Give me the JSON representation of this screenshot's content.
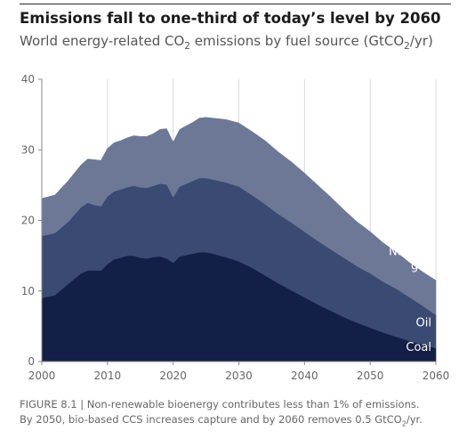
{
  "header": {
    "title": "Emissions fall to one-third of today’s level by 2060",
    "subtitle_parts": [
      "World energy-related CO",
      "2",
      " emissions by fuel source (GtCO",
      "2",
      "/yr)"
    ]
  },
  "caption": {
    "line1": "FIGURE 8.1 | Non-renewable bioenergy contributes less than 1% of emissions.",
    "line2_parts": [
      "By 2050, bio-based CCS increases capture and by 2060 removes 0.5 GtCO",
      "2",
      "/yr."
    ]
  },
  "colors": {
    "coal": "#141f47",
    "oil": "#3a4a72",
    "gas": "#6c7896",
    "grid": "#d9d9d9",
    "axis": "#888888"
  },
  "chart_data": {
    "type": "area",
    "stacked": true,
    "title": "Emissions fall to one-third of today’s level by 2060",
    "ylabel": "GtCO2/yr",
    "xlim": [
      2000,
      2060
    ],
    "ylim": [
      0,
      40
    ],
    "x_ticks": [
      2000,
      2010,
      2020,
      2030,
      2040,
      2050,
      2060
    ],
    "y_ticks": [
      0,
      10,
      20,
      30,
      40
    ],
    "grid": "vertical",
    "x": [
      2000,
      2002,
      2004,
      2006,
      2007,
      2008,
      2009,
      2010,
      2011,
      2012,
      2013,
      2014,
      2015,
      2016,
      2017,
      2018,
      2019,
      2020,
      2021,
      2022,
      2023,
      2024,
      2025,
      2026,
      2028,
      2030,
      2032,
      2034,
      2036,
      2038,
      2040,
      2042,
      2044,
      2046,
      2048,
      2050,
      2052,
      2054,
      2056,
      2058,
      2060
    ],
    "series": [
      {
        "name": "Coal",
        "values": [
          9.0,
          9.4,
          11.0,
          12.5,
          12.9,
          12.9,
          12.9,
          13.8,
          14.5,
          14.7,
          15.0,
          15.0,
          14.7,
          14.6,
          14.8,
          14.9,
          14.6,
          14.0,
          14.9,
          15.1,
          15.3,
          15.5,
          15.5,
          15.3,
          14.8,
          14.2,
          13.3,
          12.2,
          11.1,
          10.1,
          9.1,
          8.1,
          7.2,
          6.3,
          5.5,
          4.8,
          4.1,
          3.5,
          2.9,
          2.4,
          1.9
        ]
      },
      {
        "name": "Oil",
        "values": [
          8.8,
          8.8,
          8.8,
          9.4,
          9.6,
          9.3,
          9.1,
          9.6,
          9.6,
          9.7,
          9.7,
          9.9,
          10.0,
          10.0,
          10.1,
          10.3,
          10.5,
          9.3,
          9.9,
          10.1,
          10.3,
          10.5,
          10.5,
          10.5,
          10.6,
          10.6,
          10.3,
          10.1,
          9.8,
          9.6,
          9.3,
          9.0,
          8.7,
          8.4,
          8.0,
          7.7,
          7.2,
          6.8,
          6.2,
          5.5,
          4.7
        ]
      },
      {
        "name": "Natural gas",
        "values": [
          5.3,
          5.4,
          5.8,
          6.0,
          6.2,
          6.4,
          6.5,
          6.8,
          6.9,
          6.9,
          7.0,
          7.1,
          7.2,
          7.3,
          7.4,
          7.7,
          7.9,
          7.8,
          8.1,
          8.2,
          8.3,
          8.5,
          8.6,
          8.7,
          8.9,
          9.0,
          9.0,
          9.0,
          8.8,
          8.6,
          8.3,
          7.9,
          7.4,
          6.8,
          6.3,
          5.9,
          5.5,
          5.2,
          4.9,
          4.8,
          4.9
        ]
      }
    ],
    "legend": {
      "placement": "inline-right",
      "entries": [
        {
          "series": "Natural gas",
          "text": [
            "Natural",
            "gas"
          ]
        },
        {
          "series": "Oil",
          "text": [
            "Oil"
          ]
        },
        {
          "series": "Coal",
          "text": [
            "Coal"
          ]
        }
      ]
    }
  }
}
